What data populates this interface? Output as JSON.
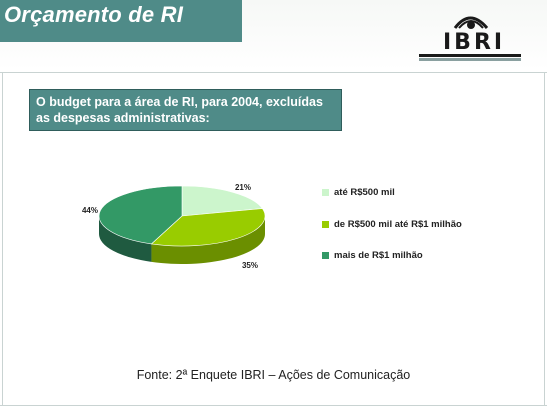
{
  "header": {
    "title": "Orçamento de RI"
  },
  "logo": {
    "text": "IBRI"
  },
  "question": "O budget para a área de RI, para 2004, excluídas as despesas administrativas:",
  "footer": {
    "source": "Fonte: 2ª Enquete IBRI – Ações de Comunicação"
  },
  "chart_data": {
    "type": "pie",
    "title": "",
    "categories": [
      "até R$500 mil",
      "de R$500 mil até R$1 milhão",
      "mais de R$1 milhão"
    ],
    "values": [
      21,
      35,
      44
    ],
    "labels": [
      "21%",
      "35%",
      "44%"
    ],
    "colors": [
      "#ccf5cc",
      "#99cc00",
      "#339966"
    ],
    "legend_position": "right"
  }
}
